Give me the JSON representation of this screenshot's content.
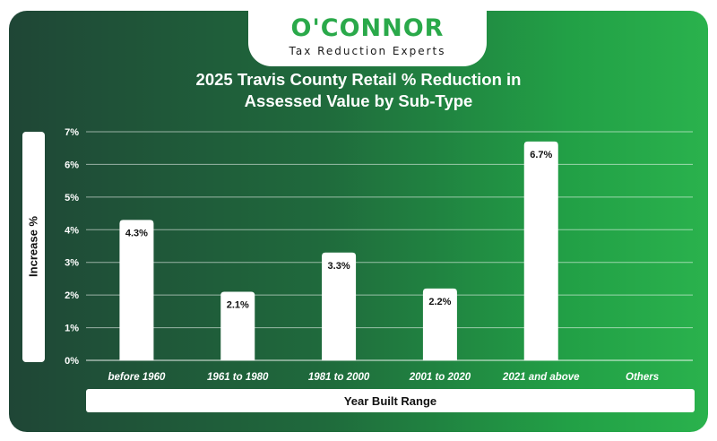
{
  "logo": {
    "name": "O'CONNOR",
    "tagline": "Tax Reduction Experts"
  },
  "colors": {
    "brand_green": "#2aa94a",
    "background_dark": "#1f4636",
    "background_light": "#2ab24d",
    "bar": "#ffffff",
    "grid": "#ffffff"
  },
  "chart_data": {
    "type": "bar",
    "title": "2025 Travis County Retail % Reduction in Assessed Value by Sub-Type",
    "title_lines": [
      "2025 Travis County Retail % Reduction in",
      "Assessed Value by Sub-Type"
    ],
    "xlabel": "Year Built Range",
    "ylabel": "Increase %",
    "categories": [
      "before 1960",
      "1961 to 1980",
      "1981 to 2000",
      "2001 to 2020",
      "2021 and above",
      "Others"
    ],
    "values": [
      4.3,
      2.1,
      3.3,
      2.2,
      6.7,
      null
    ],
    "data_labels": [
      "4.3%",
      "2.1%",
      "3.3%",
      "2.2%",
      "6.7%",
      ""
    ],
    "yticks": [
      "0%",
      "1%",
      "2%",
      "3%",
      "4%",
      "5%",
      "6%",
      "7%"
    ],
    "ylim": [
      0,
      7
    ],
    "grid": true,
    "legend": "none"
  }
}
